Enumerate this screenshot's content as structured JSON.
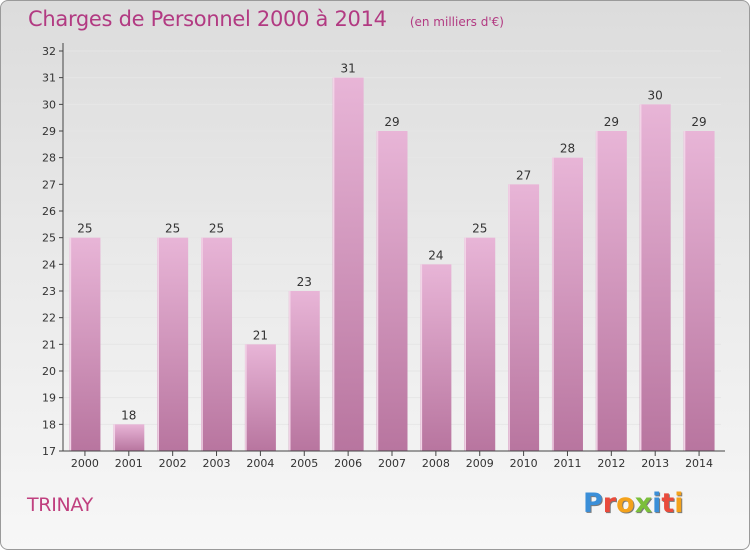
{
  "header": {
    "title": "Charges de Personnel 2000 à 2014",
    "subtitle": "(en milliers d'€)"
  },
  "footer": {
    "town": "TRINAY",
    "logo_letters": [
      "P",
      "r",
      "o",
      "x",
      "i",
      "t",
      "i"
    ],
    "logo_colors": [
      "#3b8fd8",
      "#e94b3c",
      "#f4a21b",
      "#7bbf3b",
      "#3b8fd8",
      "#e94b3c",
      "#f4a21b"
    ]
  },
  "colors": {
    "bar_light": "#e8b5d7",
    "bar_dark": "#b8759f",
    "axis": "#444444",
    "grid": "#e6e6e6"
  },
  "chart_data": {
    "type": "bar",
    "title": "Charges de Personnel 2000 à 2014",
    "subtitle": "(en milliers d'€)",
    "categories": [
      "2000",
      "2001",
      "2002",
      "2003",
      "2004",
      "2005",
      "2006",
      "2007",
      "2008",
      "2009",
      "2010",
      "2011",
      "2012",
      "2013",
      "2014"
    ],
    "values": [
      25,
      18,
      25,
      25,
      21,
      23,
      31,
      29,
      24,
      25,
      27,
      28,
      29,
      30,
      29
    ],
    "ylim": [
      17,
      32
    ],
    "yticks": [
      17,
      18,
      19,
      20,
      21,
      22,
      23,
      24,
      25,
      26,
      27,
      28,
      29,
      30,
      31,
      32
    ],
    "grid": true
  }
}
